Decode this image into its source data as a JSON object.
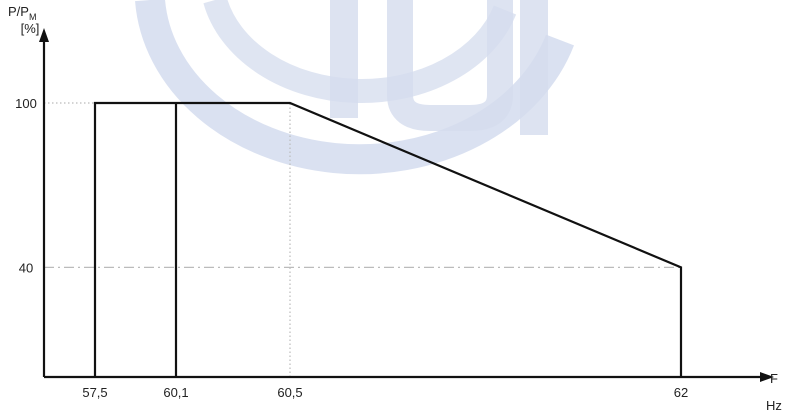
{
  "chart_data": {
    "type": "line",
    "ylabel": "P/P",
    "ylabel_subscript": "M",
    "ylabel_unit": "[%]",
    "xlabel": "F",
    "xlabel_unit": "Hz",
    "x_ticks": [
      "57,5",
      "60,1",
      "60,5",
      "62"
    ],
    "y_ticks": [
      "100",
      "40"
    ],
    "grid": false,
    "colors": {
      "line": "#111111",
      "axis": "#111111",
      "guide": "#bbbbbb",
      "watermark": "#d4dcee"
    },
    "series": [
      {
        "points": [
          {
            "x": 57.5,
            "y": 0
          },
          {
            "x": 57.5,
            "y": 100
          },
          {
            "x": 60.5,
            "y": 100
          },
          {
            "x": 62,
            "y": 40
          },
          {
            "x": 62,
            "y": 0
          }
        ]
      }
    ],
    "vertical_markers": [
      {
        "x": 60.1,
        "y_from": 0,
        "y_to": 100
      }
    ],
    "reference_lines": [
      {
        "orientation": "horizontal",
        "value": 100,
        "style": "dotted",
        "from_x": "axis",
        "to_x": 57.5
      },
      {
        "orientation": "horizontal",
        "value": 40,
        "style": "dash-dot",
        "from_x": "axis",
        "to_x": 62
      },
      {
        "orientation": "vertical",
        "value": 60.5,
        "style": "dotted",
        "from_y": 0,
        "to_y": 100
      }
    ]
  }
}
